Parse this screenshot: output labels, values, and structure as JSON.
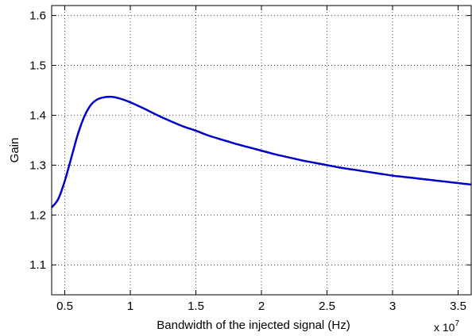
{
  "chart_data": {
    "type": "line",
    "xlabel": "Bandwidth of the injected signal (Hz)",
    "ylabel": "Gain",
    "x_multiplier_label": "x 10",
    "x_multiplier_exponent": "7",
    "xlim": [
      4000000,
      36000000
    ],
    "ylim": [
      1.04,
      1.62
    ],
    "x_ticks": [
      5000000,
      10000000,
      15000000,
      20000000,
      25000000,
      30000000,
      35000000
    ],
    "x_tick_labels": [
      "0.5",
      "1",
      "1.5",
      "2",
      "2.5",
      "3",
      "3.5"
    ],
    "y_ticks": [
      1.1,
      1.2,
      1.3,
      1.4,
      1.5,
      1.6
    ],
    "y_tick_labels": [
      "1.1",
      "1.2",
      "1.3",
      "1.4",
      "1.5",
      "1.6"
    ],
    "grid": true,
    "series": [
      {
        "color": "#0000cc",
        "x": [
          4000000,
          4500000,
          5000000,
          5500000,
          6000000,
          6500000,
          7000000,
          7500000,
          8000000,
          8500000,
          9000000,
          9500000,
          10000000,
          11000000,
          12000000,
          13000000,
          14000000,
          15000000,
          16000000,
          17000000,
          18000000,
          19000000,
          20000000,
          21000000,
          22000000,
          23000000,
          24000000,
          25000000,
          26000000,
          27000000,
          28000000,
          29000000,
          30000000,
          31000000,
          32000000,
          33000000,
          34000000,
          35000000,
          36000000
        ],
        "y": [
          1.215,
          1.232,
          1.268,
          1.315,
          1.362,
          1.398,
          1.421,
          1.432,
          1.436,
          1.437,
          1.435,
          1.431,
          1.426,
          1.414,
          1.401,
          1.389,
          1.378,
          1.369,
          1.359,
          1.351,
          1.343,
          1.336,
          1.329,
          1.322,
          1.316,
          1.31,
          1.305,
          1.3,
          1.295,
          1.291,
          1.287,
          1.283,
          1.279,
          1.276,
          1.273,
          1.27,
          1.267,
          1.264,
          1.261
        ]
      }
    ]
  }
}
